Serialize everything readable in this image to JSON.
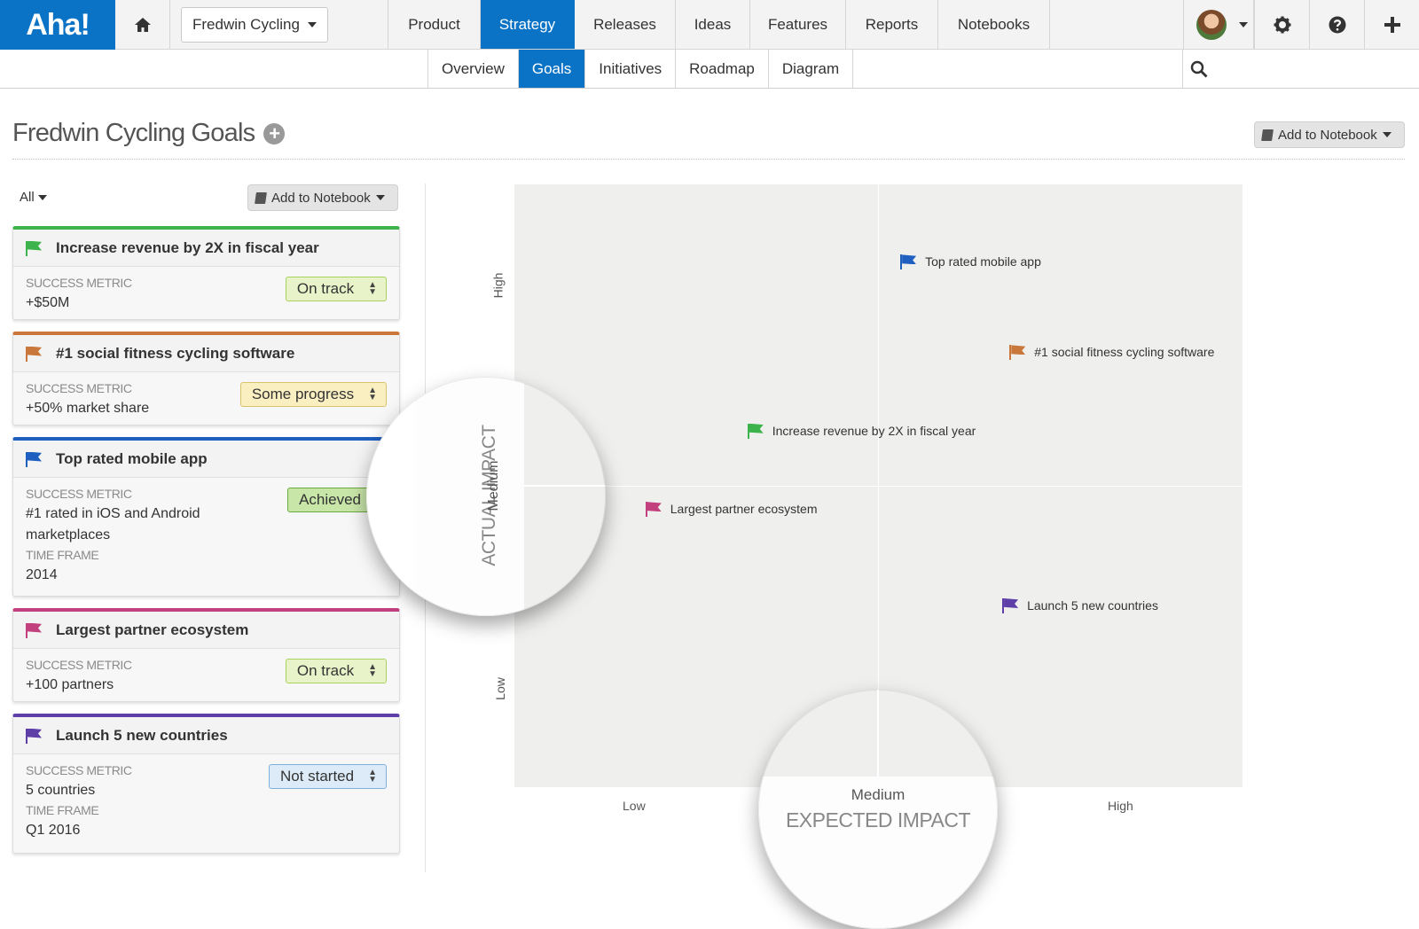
{
  "app": {
    "logo": "Aha!"
  },
  "topnav": {
    "product": "Fredwin Cycling",
    "items": [
      "Product",
      "Strategy",
      "Releases",
      "Ideas",
      "Features",
      "Reports",
      "Notebooks"
    ],
    "active": "Strategy",
    "icons": [
      "home-icon",
      "avatar",
      "gear-icon",
      "help-icon",
      "plus-icon"
    ]
  },
  "subnav": {
    "tabs": [
      "Overview",
      "Goals",
      "Initiatives",
      "Roadmap",
      "Diagram"
    ],
    "active": "Goals"
  },
  "page": {
    "title": "Fredwin Cycling Goals",
    "add_to_notebook": "Add to Notebook"
  },
  "list": {
    "filter": "All",
    "add_to_notebook": "Add to Notebook",
    "goals": [
      {
        "title": "Increase revenue by 2X in fiscal year",
        "color": "#3cb44b",
        "metric_label": "SUCCESS METRIC",
        "metric": "+$50M",
        "status": "On track"
      },
      {
        "title": "#1 social fitness cycling software",
        "color": "#c9773a",
        "metric_label": "SUCCESS METRIC",
        "metric": "+50% market share",
        "status": "Some progress"
      },
      {
        "title": "Top rated mobile app",
        "color": "#1e5fbf",
        "metric_label": "SUCCESS METRIC",
        "metric": "#1 rated in iOS and Android marketplaces",
        "timeframe_label": "TIME FRAME",
        "timeframe": "2014",
        "status": "Achieved"
      },
      {
        "title": "Largest partner ecosystem",
        "color": "#c2407e",
        "metric_label": "SUCCESS METRIC",
        "metric": "+100 partners",
        "status": "On track"
      },
      {
        "title": "Launch 5 new countries",
        "color": "#5e3fa8",
        "metric_label": "SUCCESS METRIC",
        "metric": "5 countries",
        "timeframe_label": "TIME FRAME",
        "timeframe": "Q1 2016",
        "status": "Not started"
      }
    ]
  },
  "chart_data": {
    "type": "scatter",
    "xlabel": "EXPECTED IMPACT",
    "ylabel": "ACTUAL IMPACT",
    "x_ticks": [
      "Low",
      "Medium",
      "High"
    ],
    "y_ticks": [
      "Low",
      "Medium",
      "High"
    ],
    "xlim": [
      0,
      1
    ],
    "ylim": [
      0,
      1
    ],
    "grid": true,
    "points": [
      {
        "name": "Top rated mobile app",
        "x": 0.53,
        "y": 0.87,
        "color": "#1e5fbf"
      },
      {
        "name": "#1 social fitness cycling software",
        "x": 0.68,
        "y": 0.72,
        "color": "#c9773a"
      },
      {
        "name": "Increase revenue by 2X in fiscal year",
        "x": 0.32,
        "y": 0.59,
        "color": "#3cb44b"
      },
      {
        "name": "Largest partner ecosystem",
        "x": 0.18,
        "y": 0.46,
        "color": "#c2407e"
      },
      {
        "name": "Launch 5 new countries",
        "x": 0.67,
        "y": 0.3,
        "color": "#5e3fa8"
      }
    ]
  }
}
